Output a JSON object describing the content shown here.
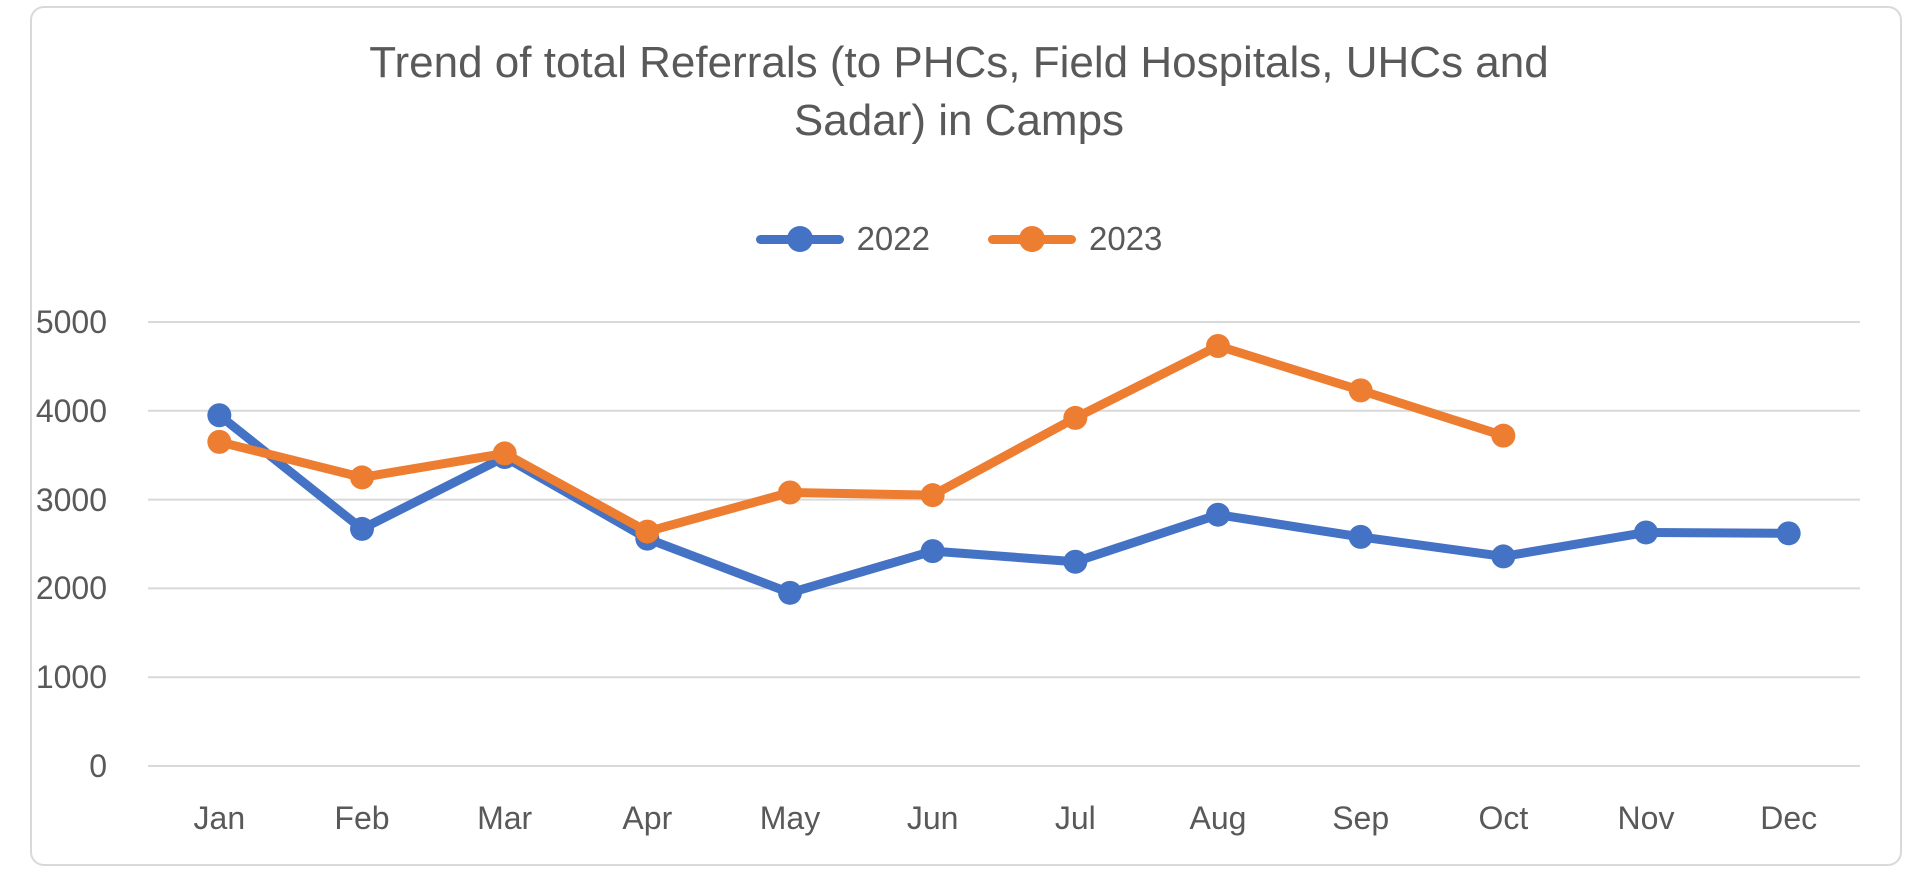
{
  "chart_data": {
    "type": "line",
    "title": "Trend of total Referrals (to PHCs, Field Hospitals, UHCs and Sadar) in Camps",
    "title_lines": [
      "Trend of total Referrals (to PHCs, Field Hospitals, UHCs and",
      "Sadar) in Camps"
    ],
    "categories": [
      "Jan",
      "Feb",
      "Mar",
      "Apr",
      "May",
      "Jun",
      "Jul",
      "Aug",
      "Sep",
      "Oct",
      "Nov",
      "Dec"
    ],
    "series": [
      {
        "name": "2022",
        "color": "#4472C4",
        "values": [
          3950,
          2670,
          3480,
          2560,
          1950,
          2420,
          2300,
          2830,
          2580,
          2360,
          2630,
          2620
        ]
      },
      {
        "name": "2023",
        "color": "#ED7D31",
        "values": [
          3650,
          3250,
          3520,
          2640,
          3080,
          3050,
          3920,
          4730,
          4230,
          3720,
          null,
          null
        ]
      }
    ],
    "xlabel": "",
    "ylabel": "",
    "ylim": [
      0,
      5000
    ],
    "yticks": [
      0,
      1000,
      2000,
      3000,
      4000,
      5000
    ],
    "grid": true,
    "legend_position": "top-center",
    "text_color": "#595959",
    "gridline_color": "#D9D9D9",
    "background_color": "#FFFFFF",
    "border_color": "#D9D9D9"
  }
}
